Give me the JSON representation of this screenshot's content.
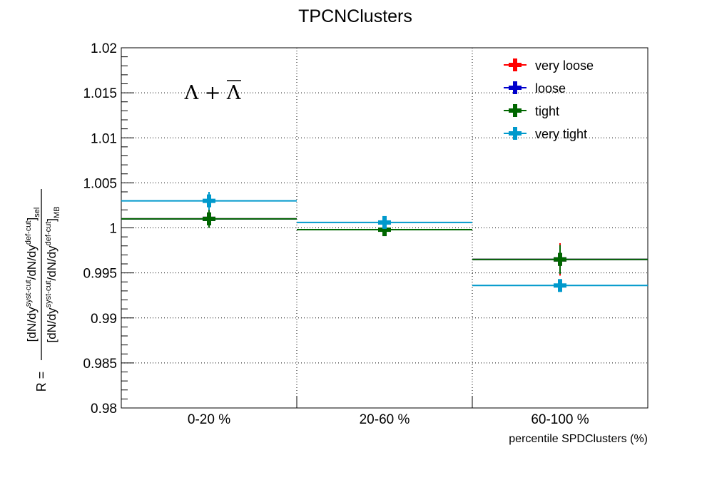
{
  "chart_data": {
    "type": "scatter",
    "title": "TPCNClusters",
    "xlabel": "percentile SPDClusters (%)",
    "ylabel": {
      "prefix": "R =",
      "numerator": [
        "[dN/dy",
        "syst-cut",
        "/dN/dy",
        "def-cut",
        "]",
        "sel"
      ],
      "denominator": [
        "[dN/dy",
        "syst-cut",
        "/dN/dy",
        "def-cut",
        "]",
        "MB"
      ]
    },
    "annotation": "Λ + Λ",
    "categories": [
      "0-20 %",
      "20-60 %",
      "60-100 %"
    ],
    "y_ticks": [
      "0.98",
      "0.985",
      "0.99",
      "0.995",
      "1",
      "1.005",
      "1.01",
      "1.015",
      "1.02"
    ],
    "ylim": [
      0.98,
      1.02
    ],
    "grid": true,
    "legend_position": "top-right",
    "series": [
      {
        "name": "very loose",
        "color": "#ff0000",
        "values": [
          1.001,
          0.9998,
          0.9965
        ],
        "errors": [
          0.001,
          0.0006,
          0.0018
        ]
      },
      {
        "name": "loose",
        "color": "#0000cc",
        "values": [
          1.001,
          0.9998,
          0.9965
        ],
        "errors": [
          0.001,
          0.0006,
          0.0016
        ]
      },
      {
        "name": "tight",
        "color": "#006600",
        "values": [
          1.001,
          0.9998,
          0.9965
        ],
        "errors": [
          0.001,
          0.0006,
          0.0016
        ]
      },
      {
        "name": "very tight",
        "color": "#0099cc",
        "values": [
          1.003,
          1.0006,
          0.9936
        ],
        "errors": [
          0.001,
          0.0007,
          0.0007
        ]
      }
    ]
  }
}
